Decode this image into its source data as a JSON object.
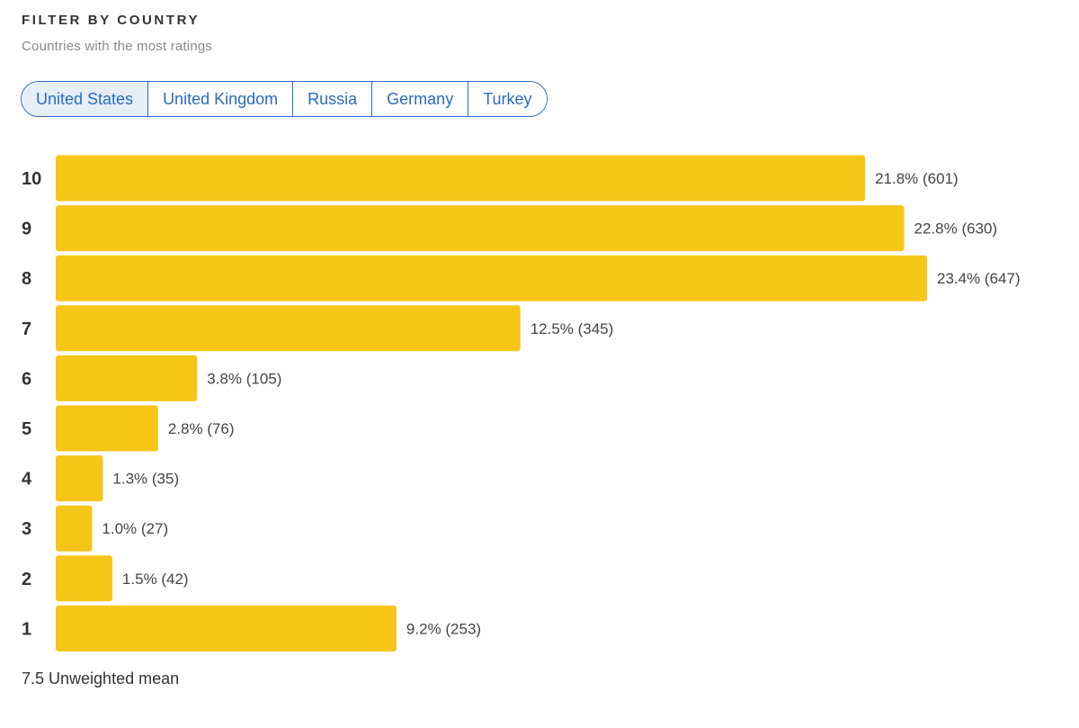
{
  "header": {
    "title": "FILTER BY COUNTRY",
    "subtitle": "Countries with the most ratings"
  },
  "tabs": [
    {
      "label": "United States",
      "selected": true
    },
    {
      "label": "United Kingdom",
      "selected": false
    },
    {
      "label": "Russia",
      "selected": false
    },
    {
      "label": "Germany",
      "selected": false
    },
    {
      "label": "Turkey",
      "selected": false
    }
  ],
  "colors": {
    "bar": "#f5c518",
    "accent": "#2a6bbf",
    "selected_tab_bg": "#e6eef8"
  },
  "chart_data": {
    "type": "bar",
    "orientation": "horizontal",
    "categories": [
      "10",
      "9",
      "8",
      "7",
      "6",
      "5",
      "4",
      "3",
      "2",
      "1"
    ],
    "values": [
      601,
      630,
      647,
      345,
      105,
      76,
      35,
      27,
      42,
      253
    ],
    "percents": [
      21.8,
      22.8,
      23.4,
      12.5,
      3.8,
      2.8,
      1.3,
      1.0,
      1.5,
      9.2
    ],
    "labels": [
      "21.8% (601)",
      "22.8% (630)",
      "23.4% (647)",
      "12.5% (345)",
      "3.8% (105)",
      "2.8% (76)",
      "1.3% (35)",
      "1.0% (27)",
      "1.5% (42)",
      "9.2% (253)"
    ],
    "title": "",
    "xlabel": "",
    "ylabel": "",
    "grid": false
  },
  "footer": {
    "mean_text": "7.5 Unweighted mean"
  }
}
